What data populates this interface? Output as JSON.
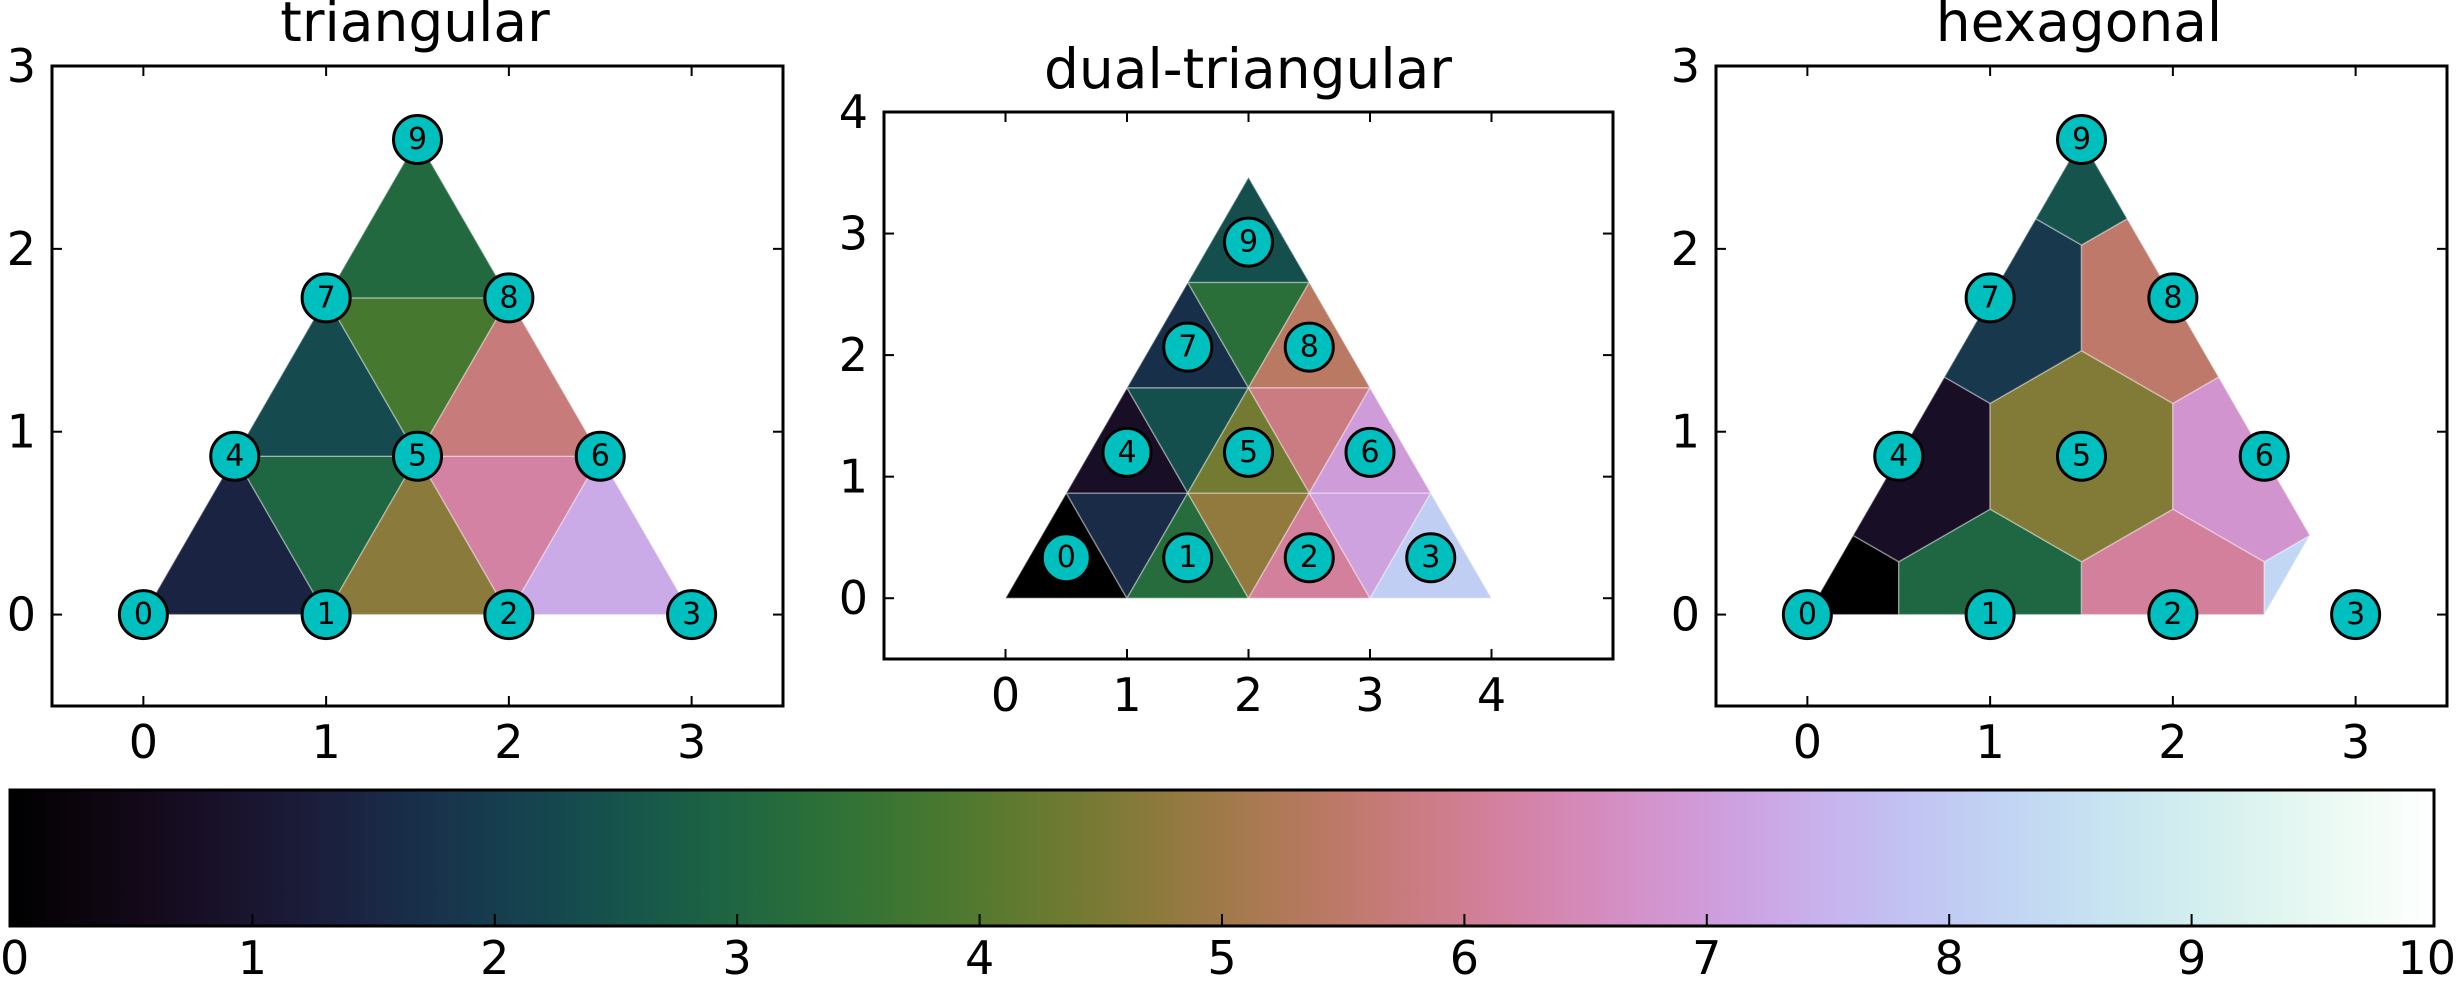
{
  "chart_data": [
    {
      "type": "triangular-mesh",
      "title": "triangular",
      "xlim": [
        -0.5,
        3.5
      ],
      "ylim": [
        -0.5,
        3.0
      ],
      "xticks": [
        "0",
        "1",
        "2",
        "3"
      ],
      "yticks": [
        "0",
        "1",
        "2",
        "3"
      ],
      "nodes": [
        {
          "id": "0",
          "x": 0,
          "y": 0
        },
        {
          "id": "1",
          "x": 1,
          "y": 0
        },
        {
          "id": "2",
          "x": 2,
          "y": 0
        },
        {
          "id": "3",
          "x": 3,
          "y": 0
        },
        {
          "id": "4",
          "x": 0.5,
          "y": 0.866
        },
        {
          "id": "5",
          "x": 1.5,
          "y": 0.866
        },
        {
          "id": "6",
          "x": 2.5,
          "y": 0.866
        },
        {
          "id": "7",
          "x": 1,
          "y": 1.732
        },
        {
          "id": "8",
          "x": 2,
          "y": 1.732
        },
        {
          "id": "9",
          "x": 1.5,
          "y": 2.598
        }
      ],
      "cells": [
        {
          "points": [
            [
              0,
              0
            ],
            [
              1,
              0
            ],
            [
              0.5,
              0.866
            ]
          ],
          "value": 1.4
        },
        {
          "points": [
            [
              1,
              0
            ],
            [
              0.5,
              0.866
            ],
            [
              1.5,
              0.866
            ]
          ],
          "value": 3.0
        },
        {
          "points": [
            [
              1,
              0
            ],
            [
              2,
              0
            ],
            [
              1.5,
              0.866
            ]
          ],
          "value": 4.7
        },
        {
          "points": [
            [
              2,
              0
            ],
            [
              1.5,
              0.866
            ],
            [
              2.5,
              0.866
            ]
          ],
          "value": 6.2
        },
        {
          "points": [
            [
              2,
              0
            ],
            [
              3,
              0
            ],
            [
              2.5,
              0.866
            ]
          ],
          "value": 7.3
        },
        {
          "points": [
            [
              0.5,
              0.866
            ],
            [
              1.5,
              0.866
            ],
            [
              1,
              1.732
            ]
          ],
          "value": 2.3
        },
        {
          "points": [
            [
              1.5,
              0.866
            ],
            [
              1,
              1.732
            ],
            [
              2,
              1.732
            ]
          ],
          "value": 3.8
        },
        {
          "points": [
            [
              1.5,
              0.866
            ],
            [
              2.5,
              0.866
            ],
            [
              2,
              1.732
            ]
          ],
          "value": 5.7
        },
        {
          "points": [
            [
              1,
              1.732
            ],
            [
              2,
              1.732
            ],
            [
              1.5,
              2.598
            ]
          ],
          "value": 3.1
        }
      ]
    },
    {
      "type": "triangular-mesh",
      "title": "dual-triangular",
      "xlim": [
        -1.0,
        5.0
      ],
      "ylim": [
        -0.5,
        4.0
      ],
      "xticks": [
        "0",
        "1",
        "2",
        "3",
        "4"
      ],
      "yticks": [
        "0",
        "1",
        "2",
        "3",
        "4"
      ],
      "nodes": [
        {
          "id": "0",
          "x": 0.5,
          "y": 0.333
        },
        {
          "id": "1",
          "x": 1.5,
          "y": 0.333
        },
        {
          "id": "2",
          "x": 2.5,
          "y": 0.333
        },
        {
          "id": "3",
          "x": 3.5,
          "y": 0.333
        },
        {
          "id": "4",
          "x": 1.0,
          "y": 1.2
        },
        {
          "id": "5",
          "x": 2.0,
          "y": 1.2
        },
        {
          "id": "6",
          "x": 3.0,
          "y": 1.2
        },
        {
          "id": "7",
          "x": 1.5,
          "y": 2.066
        },
        {
          "id": "8",
          "x": 2.5,
          "y": 2.066
        },
        {
          "id": "9",
          "x": 2.0,
          "y": 2.93
        }
      ],
      "cells": [
        {
          "points": [
            [
              0,
              0
            ],
            [
              1,
              0
            ],
            [
              0.5,
              0.866
            ]
          ],
          "value": 0.0
        },
        {
          "points": [
            [
              1,
              0
            ],
            [
              0.5,
              0.866
            ],
            [
              1.5,
              0.866
            ]
          ],
          "value": 1.6
        },
        {
          "points": [
            [
              1,
              0
            ],
            [
              2,
              0
            ],
            [
              1.5,
              0.866
            ]
          ],
          "value": 3.2
        },
        {
          "points": [
            [
              2,
              0
            ],
            [
              1.5,
              0.866
            ],
            [
              2.5,
              0.866
            ]
          ],
          "value": 4.8
        },
        {
          "points": [
            [
              2,
              0
            ],
            [
              3,
              0
            ],
            [
              2.5,
              0.866
            ]
          ],
          "value": 6.1
        },
        {
          "points": [
            [
              3,
              0
            ],
            [
              2.5,
              0.866
            ],
            [
              3.5,
              0.866
            ]
          ],
          "value": 7.1
        },
        {
          "points": [
            [
              3,
              0
            ],
            [
              4,
              0
            ],
            [
              3.5,
              0.866
            ]
          ],
          "value": 8.1
        },
        {
          "points": [
            [
              0.5,
              0.866
            ],
            [
              1.5,
              0.866
            ],
            [
              1,
              1.732
            ]
          ],
          "value": 0.8
        },
        {
          "points": [
            [
              1.5,
              0.866
            ],
            [
              1,
              1.732
            ],
            [
              2,
              1.732
            ]
          ],
          "value": 2.4
        },
        {
          "points": [
            [
              1.5,
              0.866
            ],
            [
              2.5,
              0.866
            ],
            [
              2,
              1.732
            ]
          ],
          "value": 4.4
        },
        {
          "points": [
            [
              2.5,
              0.866
            ],
            [
              2,
              1.732
            ],
            [
              3,
              1.732
            ]
          ],
          "value": 5.8
        },
        {
          "points": [
            [
              2.5,
              0.866
            ],
            [
              3.5,
              0.866
            ],
            [
              3,
              1.732
            ]
          ],
          "value": 7.0
        },
        {
          "points": [
            [
              1,
              1.732
            ],
            [
              2,
              1.732
            ],
            [
              1.5,
              2.598
            ]
          ],
          "value": 1.7
        },
        {
          "points": [
            [
              2,
              1.732
            ],
            [
              1.5,
              2.598
            ],
            [
              2.5,
              2.598
            ]
          ],
          "value": 3.3
        },
        {
          "points": [
            [
              2,
              1.732
            ],
            [
              3,
              1.732
            ],
            [
              2.5,
              2.598
            ]
          ],
          "value": 5.4
        },
        {
          "points": [
            [
              1.5,
              2.598
            ],
            [
              2.5,
              2.598
            ],
            [
              2,
              3.464
            ]
          ],
          "value": 2.4
        }
      ]
    },
    {
      "type": "hexagonal-mesh",
      "title": "hexagonal",
      "xlim": [
        -0.5,
        3.5
      ],
      "ylim": [
        -0.5,
        3.0
      ],
      "xticks": [
        "0",
        "1",
        "2",
        "3"
      ],
      "yticks": [
        "0",
        "1",
        "2",
        "3"
      ],
      "nodes": [
        {
          "id": "0",
          "x": 0,
          "y": 0
        },
        {
          "id": "1",
          "x": 1,
          "y": 0
        },
        {
          "id": "2",
          "x": 2,
          "y": 0
        },
        {
          "id": "3",
          "x": 3,
          "y": 0
        },
        {
          "id": "4",
          "x": 0.5,
          "y": 0.866
        },
        {
          "id": "5",
          "x": 1.5,
          "y": 0.866
        },
        {
          "id": "6",
          "x": 2.5,
          "y": 0.866
        },
        {
          "id": "7",
          "x": 1,
          "y": 1.732
        },
        {
          "id": "8",
          "x": 2,
          "y": 1.732
        },
        {
          "id": "9",
          "x": 1.5,
          "y": 2.598
        }
      ],
      "cells": [
        {
          "points": [
            [
              0,
              0
            ],
            [
              0.5,
              0
            ],
            [
              0.5,
              0.289
            ],
            [
              0.25,
              0.433
            ]
          ],
          "value": 0.0
        },
        {
          "points": [
            [
              0.5,
              0
            ],
            [
              1.5,
              0
            ],
            [
              1.5,
              0.289
            ],
            [
              1,
              0.577
            ],
            [
              0.5,
              0.289
            ]
          ],
          "value": 3.0
        },
        {
          "points": [
            [
              1.5,
              0
            ],
            [
              2.5,
              0
            ],
            [
              2.5,
              0.289
            ],
            [
              2,
              0.577
            ],
            [
              1.5,
              0.289
            ]
          ],
          "value": 6.1
        },
        {
          "points": [
            [
              2.5,
              0
            ],
            [
              2.75,
              0.433
            ],
            [
              2.5,
              0.289
            ]
          ],
          "value": 8.3
        },
        {
          "points": [
            [
              0.25,
              0.433
            ],
            [
              0.5,
              0.289
            ],
            [
              1,
              0.577
            ],
            [
              1,
              1.155
            ],
            [
              0.75,
              1.299
            ]
          ],
          "value": 0.8
        },
        {
          "points": [
            [
              1,
              0.577
            ],
            [
              1.5,
              0.289
            ],
            [
              2,
              0.577
            ],
            [
              2,
              1.155
            ],
            [
              1.5,
              1.443
            ],
            [
              1,
              1.155
            ]
          ],
          "value": 4.6
        },
        {
          "points": [
            [
              2,
              0.577
            ],
            [
              2.5,
              0.289
            ],
            [
              2.75,
              0.433
            ],
            [
              2.25,
              1.299
            ],
            [
              2,
              1.155
            ]
          ],
          "value": 6.8
        },
        {
          "points": [
            [
              0.75,
              1.299
            ],
            [
              1,
              1.155
            ],
            [
              1.5,
              1.443
            ],
            [
              1.5,
              2.021
            ],
            [
              1.25,
              2.165
            ]
          ],
          "value": 1.9
        },
        {
          "points": [
            [
              1.5,
              1.443
            ],
            [
              2,
              1.155
            ],
            [
              2.25,
              1.299
            ],
            [
              1.75,
              2.165
            ],
            [
              1.5,
              2.021
            ]
          ],
          "value": 5.5
        },
        {
          "points": [
            [
              1.25,
              2.165
            ],
            [
              1.5,
              2.021
            ],
            [
              1.75,
              2.165
            ],
            [
              1.5,
              2.598
            ]
          ],
          "value": 2.5
        }
      ]
    }
  ],
  "colorbar": {
    "cmap": "cubehelix",
    "vmin": 0,
    "vmax": 10,
    "ticks": [
      "0",
      "1",
      "2",
      "3",
      "4",
      "5",
      "6",
      "7",
      "8",
      "9",
      "10"
    ]
  }
}
